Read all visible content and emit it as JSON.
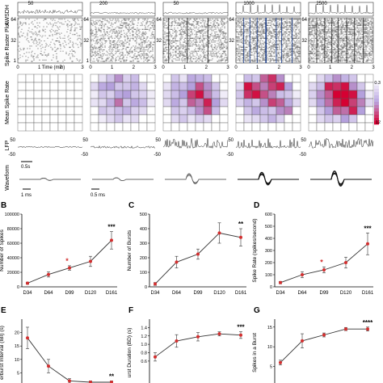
{
  "row_labels": {
    "awsdh": "AWSDH",
    "raster": "Spike Raster Plot",
    "msr": "Mean Spike Rate",
    "lfp": "LFP",
    "waveform": "Waveform"
  },
  "top_panel": {
    "column_maxes": [
      "50",
      "200",
      "50",
      "1000",
      "2500"
    ],
    "raster_ticks": [
      "64",
      "32",
      "1"
    ],
    "time_ticks": [
      "0",
      "1",
      "2",
      "3"
    ],
    "time_label": "Time (min)",
    "colorbar_ticks": [
      "0.3",
      "12"
    ],
    "lfp_ticks": [
      "50",
      "-50"
    ],
    "lfp_scale": "0.5s",
    "waveform_scale_1": "1 ms",
    "waveform_scale_2": "0.5 ms"
  },
  "heatmaps": [
    [
      [
        0,
        0,
        0,
        0,
        0,
        0,
        0,
        0
      ],
      [
        0,
        0,
        0,
        0,
        0,
        0,
        0,
        0
      ],
      [
        0,
        0,
        0,
        0,
        0,
        0,
        0,
        0
      ],
      [
        0,
        0,
        0,
        0,
        0,
        0,
        0,
        0
      ],
      [
        0,
        0,
        0,
        0,
        0,
        0,
        0,
        0
      ],
      [
        0,
        0,
        0,
        0,
        0,
        0,
        0,
        0
      ],
      [
        0,
        0,
        0,
        0,
        0,
        0,
        0,
        0
      ]
    ],
    [
      [
        0,
        0.15,
        0.3,
        0.55,
        0.25,
        0.35,
        0,
        0
      ],
      [
        0.2,
        0.45,
        0.5,
        0.3,
        0.3,
        0.4,
        0.2,
        0
      ],
      [
        0.1,
        0.3,
        0.25,
        0.45,
        0.5,
        0.3,
        0.25,
        0.1
      ],
      [
        0.15,
        0.2,
        0.4,
        0.65,
        0.3,
        0.45,
        0.35,
        0.1
      ],
      [
        0,
        0.3,
        0.25,
        0.35,
        0.4,
        0.25,
        0.2,
        0
      ],
      [
        0,
        0.1,
        0.2,
        0.3,
        0.15,
        0.2,
        0,
        0
      ],
      [
        0,
        0,
        0,
        0,
        0,
        0,
        0,
        0
      ]
    ],
    [
      [
        0,
        0.3,
        0.15,
        0.45,
        0.4,
        0.35,
        0,
        0
      ],
      [
        0.15,
        0.4,
        0.35,
        0.5,
        0.75,
        0.55,
        0.3,
        0
      ],
      [
        0.2,
        0.35,
        0.5,
        0.8,
        0.95,
        0.6,
        0.35,
        0.1
      ],
      [
        0.2,
        0.45,
        0.3,
        0.7,
        0.6,
        0.9,
        0.5,
        0.2
      ],
      [
        0,
        0.3,
        0.25,
        0.35,
        0.55,
        0.75,
        0.35,
        0
      ],
      [
        0,
        0.2,
        0.3,
        0.15,
        0.25,
        0.2,
        0,
        0
      ],
      [
        0,
        0,
        0,
        0,
        0,
        0,
        0,
        0
      ]
    ],
    [
      [
        0,
        0.35,
        0.3,
        0.7,
        0.85,
        0.55,
        0,
        0
      ],
      [
        0.2,
        0.95,
        0.75,
        0.6,
        0.8,
        0.9,
        0.5,
        0
      ],
      [
        0.3,
        0.85,
        0.95,
        0.75,
        0.6,
        0.35,
        0.3,
        0.1
      ],
      [
        0.25,
        0.4,
        0.3,
        0.55,
        0.8,
        0.7,
        0.45,
        0.2
      ],
      [
        0,
        0.3,
        0.45,
        0.35,
        0.3,
        0.55,
        0.6,
        0
      ],
      [
        0,
        0.15,
        0.2,
        0.3,
        0.4,
        0.25,
        0,
        0
      ],
      [
        0,
        0,
        0,
        0,
        0,
        0,
        0,
        0
      ]
    ],
    [
      [
        0,
        0.2,
        0.35,
        0.55,
        0.4,
        0.3,
        0,
        0
      ],
      [
        0.2,
        0.35,
        0.9,
        0.85,
        0.95,
        0.55,
        0.3,
        0
      ],
      [
        0.25,
        0.55,
        0.7,
        1.0,
        1.0,
        0.95,
        0.5,
        0.1
      ],
      [
        0.2,
        0.5,
        0.65,
        0.9,
        1.0,
        0.8,
        0.6,
        0.2
      ],
      [
        0,
        0.3,
        0.5,
        0.7,
        0.65,
        0.9,
        0.5,
        0
      ],
      [
        0,
        0.2,
        0.3,
        0.25,
        0.5,
        0.3,
        0,
        0
      ],
      [
        0,
        0,
        0,
        0,
        0,
        0,
        0,
        0
      ]
    ]
  ],
  "colors": {
    "accent": "#d32f2f",
    "line": "#333333",
    "heat_low": "#ffffff",
    "heat_mid": "#b39ddb",
    "heat_high": "#d50000"
  },
  "panels": {
    "B": {
      "label": "B",
      "ylabel": "Number of Spikes",
      "sig": "***",
      "sig_at": "D161",
      "ylim": [
        0,
        100000
      ],
      "yticks": [
        "0",
        "20000",
        "40000",
        "60000",
        "80000",
        "100000"
      ]
    },
    "C": {
      "label": "C",
      "ylabel": "Number of Bursts",
      "sig": "**",
      "sig_at": "D161",
      "ylim": [
        0,
        500
      ],
      "yticks": [
        "0",
        "100",
        "200",
        "300",
        "400",
        "500"
      ]
    },
    "D": {
      "label": "D",
      "ylabel": "Spike Rate (spikes/second)",
      "sig": "***",
      "sig_at": "D161",
      "ylim": [
        0,
        600
      ],
      "yticks": [
        "0",
        "100",
        "200",
        "300",
        "400",
        "500",
        "600"
      ]
    },
    "E": {
      "label": "E",
      "ylabel": "erburst Interval (IBI) (s)",
      "sig": "**",
      "sig_at": "D161",
      "ylim": [
        0,
        25
      ],
      "yticks": [
        "20",
        "15",
        "10",
        "5",
        "0"
      ]
    },
    "F": {
      "label": "F",
      "ylabel": "urst Duration (BD) (s)",
      "sig": "***",
      "sig_at": "D161",
      "ylim": [
        0,
        1.6
      ],
      "yticks": [
        "1.4",
        "1.2",
        "1.0",
        "0.8",
        "0.6"
      ]
    },
    "G": {
      "label": "G",
      "ylabel": "Spikes in a Burst",
      "sig": "****",
      "sig_at": "D161",
      "ylim": [
        0,
        17
      ],
      "yticks": [
        "15",
        "10",
        "5"
      ]
    }
  },
  "chart_data": [
    {
      "type": "line",
      "panel": "B",
      "categories": [
        "D34",
        "D64",
        "D99",
        "D120",
        "D161"
      ],
      "series": [
        {
          "values": [
            5000,
            17000,
            26000,
            35000,
            64000
          ],
          "error": [
            1500,
            3500,
            3000,
            7000,
            12000
          ]
        }
      ],
      "ylabel": "Number of Spikes",
      "ylim": [
        0,
        100000
      ],
      "annotations": [
        {
          "at": "D99",
          "text": "*"
        },
        {
          "at": "D161",
          "text": "***"
        }
      ]
    },
    {
      "type": "line",
      "panel": "C",
      "categories": [
        "D34",
        "D64",
        "D99",
        "D120",
        "D161"
      ],
      "series": [
        {
          "values": [
            20,
            170,
            225,
            370,
            340
          ],
          "error": [
            10,
            40,
            35,
            70,
            60
          ]
        }
      ],
      "ylabel": "Number of Bursts",
      "ylim": [
        0,
        500
      ],
      "annotations": [
        {
          "at": "D161",
          "text": "**"
        }
      ]
    },
    {
      "type": "line",
      "panel": "D",
      "categories": [
        "D34",
        "D64",
        "D99",
        "D120",
        "D161"
      ],
      "series": [
        {
          "values": [
            35,
            100,
            140,
            200,
            355
          ],
          "error": [
            10,
            25,
            25,
            45,
            90
          ]
        }
      ],
      "ylabel": "Spike Rate (spikes/second)",
      "ylim": [
        0,
        600
      ],
      "annotations": [
        {
          "at": "D99",
          "text": "*"
        },
        {
          "at": "D161",
          "text": "***"
        }
      ]
    },
    {
      "type": "line",
      "panel": "E",
      "categories": [
        "D34",
        "D64",
        "D99",
        "D120",
        "D161"
      ],
      "series": [
        {
          "values": [
            18,
            7.5,
            2,
            1.5,
            1.5
          ],
          "error": [
            4,
            2.5,
            0.8,
            0.5,
            0.5
          ]
        }
      ],
      "ylabel": "erburst Interval (IBI) (s)",
      "ylim": [
        0,
        25
      ],
      "annotations": [
        {
          "at": "D161",
          "text": "**"
        }
      ]
    },
    {
      "type": "line",
      "panel": "F",
      "categories": [
        "D34",
        "D64",
        "D99",
        "D120",
        "D161"
      ],
      "series": [
        {
          "values": [
            0.7,
            1.08,
            1.18,
            1.25,
            1.22
          ],
          "error": [
            0.1,
            0.15,
            0.1,
            0.05,
            0.08
          ]
        }
      ],
      "ylabel": "urst Duration (BD) (s)",
      "ylim": [
        0,
        1.6
      ],
      "annotations": [
        {
          "at": "D161",
          "text": "***"
        }
      ]
    },
    {
      "type": "line",
      "panel": "G",
      "categories": [
        "D34",
        "D64",
        "D99",
        "D120",
        "D161"
      ],
      "series": [
        {
          "values": [
            6,
            11.5,
            13,
            14.5,
            14.5
          ],
          "error": [
            0.6,
            1.8,
            0.5,
            0.4,
            0.5
          ]
        }
      ],
      "ylabel": "Spikes in a Burst",
      "ylim": [
        0,
        17
      ],
      "annotations": [
        {
          "at": "D161",
          "text": "****"
        }
      ]
    }
  ]
}
